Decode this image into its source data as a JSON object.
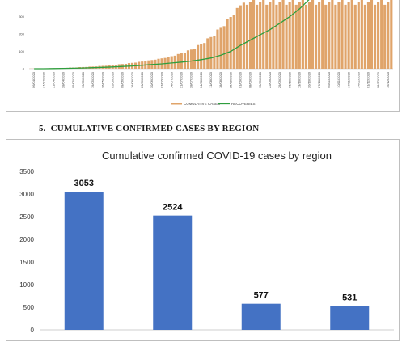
{
  "section": {
    "number": "5.",
    "title": "CUMULATIVE CONFIRMED CASES BY REGION"
  },
  "colors": {
    "bar_orange": "#e0a46a",
    "line_green": "#2e9e3e",
    "bar_blue": "#4472c4"
  },
  "chart_data": [
    {
      "type": "bar",
      "title": "",
      "ylim": [
        0,
        400
      ],
      "y_ticks": [
        0,
        100,
        200,
        300
      ],
      "x_labels": [
        "06/04/2020",
        "14/04/2020",
        "21/04/2020",
        "28/04/2020",
        "05/05/2020",
        "12/05/2020",
        "19/05/2020",
        "26/05/2020",
        "02/06/2020",
        "09/06/2020",
        "16/06/2020",
        "23/06/2020",
        "30/06/2020",
        "07/07/2020",
        "14/07/2020",
        "21/07/2020",
        "28/07/2020",
        "04/08/2020",
        "11/08/2020",
        "18/08/2020",
        "25/08/2020",
        "01/09/2020",
        "08/09/2020",
        "15/09/2020",
        "22/09/2020",
        "29/09/2020",
        "06/10/2020",
        "13/10/2020",
        "20/10/2020",
        "27/10/2020",
        "03/11/2020",
        "10/11/2020",
        "17/11/2020",
        "24/11/2020",
        "01/12/2020",
        "08/12/2020",
        "15/12/2020"
      ],
      "series": [
        {
          "name": "CUMULATIVE CASES",
          "kind": "bar",
          "values": [
            1,
            2,
            3,
            5,
            7,
            10,
            13,
            17,
            22,
            28,
            35,
            43,
            52,
            62,
            75,
            92,
            115,
            148,
            190,
            245,
            310,
            380,
            400,
            400,
            400,
            400,
            400,
            400,
            400,
            400,
            400,
            400,
            400,
            400,
            400,
            400,
            400
          ]
        },
        {
          "name": "RECOVERIES",
          "kind": "line",
          "values": [
            0,
            0,
            1,
            2,
            3,
            4,
            6,
            8,
            10,
            13,
            16,
            20,
            24,
            28,
            33,
            38,
            44,
            52,
            62,
            78,
            100,
            135,
            165,
            196,
            225,
            262,
            300,
            345,
            400,
            400,
            400,
            400,
            400,
            400,
            400,
            400,
            400
          ]
        }
      ]
    },
    {
      "type": "bar",
      "title": "Cumulative confirmed COVID-19 cases by region",
      "ylim": [
        0,
        3500
      ],
      "y_ticks": [
        0,
        500,
        1000,
        1500,
        2000,
        2500,
        3000,
        3500
      ],
      "categories": [
        "",
        "",
        "",
        ""
      ],
      "values": [
        3053,
        2524,
        577,
        531
      ],
      "value_labels": [
        "3053",
        "2524",
        "577",
        "531"
      ]
    }
  ]
}
